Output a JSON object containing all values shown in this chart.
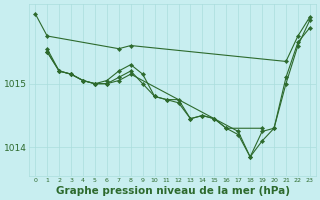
{
  "background_color": "#c8eef0",
  "grid_color": "#aadddd",
  "line_color": "#2d6a2d",
  "marker_color": "#2d6a2d",
  "xlabel": "Graphe pression niveau de la mer (hPa)",
  "xlabel_fontsize": 7.5,
  "ytick_labels": [
    "1014",
    "1015"
  ],
  "ytick_values": [
    1014.0,
    1015.0
  ],
  "xlim": [
    -0.5,
    23.5
  ],
  "ylim": [
    1013.55,
    1016.25
  ],
  "series": [
    {
      "x": [
        0,
        1,
        7,
        8,
        21,
        22,
        23
      ],
      "y": [
        1016.1,
        1015.75,
        1015.55,
        1015.6,
        1015.35,
        1015.75,
        1016.05
      ]
    },
    {
      "x": [
        1,
        2,
        3,
        4,
        5,
        6,
        7,
        8,
        9,
        10,
        11,
        12,
        13,
        14,
        15,
        16,
        19
      ],
      "y": [
        1015.55,
        1015.2,
        1015.15,
        1015.05,
        1015.0,
        1015.05,
        1015.2,
        1015.3,
        1015.15,
        1014.8,
        1014.75,
        1014.75,
        1014.45,
        1014.5,
        1014.45,
        1014.3,
        1014.3
      ]
    },
    {
      "x": [
        1,
        2,
        3,
        4,
        5,
        6,
        7,
        8,
        9,
        10,
        11,
        12,
        13,
        14,
        15,
        16,
        17,
        18,
        19,
        20,
        21,
        22,
        23
      ],
      "y": [
        1015.5,
        1015.2,
        1015.15,
        1015.05,
        1015.0,
        1015.0,
        1015.1,
        1015.2,
        1015.0,
        1014.8,
        1014.75,
        1014.7,
        1014.45,
        1014.5,
        1014.45,
        1014.3,
        1014.2,
        1013.85,
        1014.1,
        1014.3,
        1015.0,
        1015.6,
        1016.0
      ]
    },
    {
      "x": [
        1,
        2,
        3,
        4,
        5,
        6,
        7,
        8,
        17,
        18,
        19,
        20,
        21,
        22,
        23
      ],
      "y": [
        1015.5,
        1015.2,
        1015.15,
        1015.05,
        1015.0,
        1015.0,
        1015.05,
        1015.15,
        1014.25,
        1013.85,
        1014.25,
        1014.3,
        1015.1,
        1015.65,
        1015.88
      ]
    }
  ]
}
